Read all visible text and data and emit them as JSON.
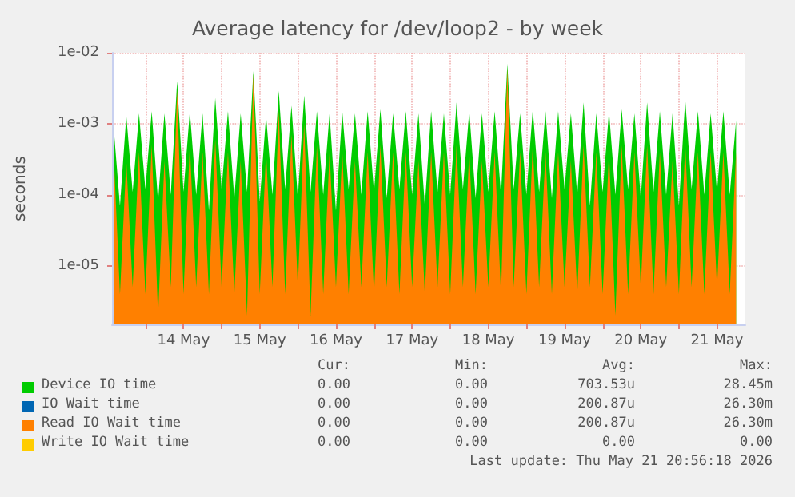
{
  "chart_data": {
    "type": "area",
    "title": "Average latency for /dev/loop2 - by week",
    "ylabel": "seconds",
    "log": "y",
    "grid": true,
    "legend": "bottom",
    "marker": "none",
    "xlim": [
      "2026-05-13T13:30",
      "2026-05-21T20:56"
    ],
    "xticks": [
      {
        "value": "2026-05-14T00:00",
        "label": null
      },
      {
        "value": "2026-05-14T12:00",
        "label": "14 May"
      },
      {
        "value": "2026-05-15T00:00",
        "label": null
      },
      {
        "value": "2026-05-15T12:00",
        "label": "15 May"
      },
      {
        "value": "2026-05-16T00:00",
        "label": null
      },
      {
        "value": "2026-05-16T12:00",
        "label": "16 May"
      },
      {
        "value": "2026-05-17T00:00",
        "label": null
      },
      {
        "value": "2026-05-17T12:00",
        "label": "17 May"
      },
      {
        "value": "2026-05-18T00:00",
        "label": null
      },
      {
        "value": "2026-05-18T12:00",
        "label": "18 May"
      },
      {
        "value": "2026-05-19T00:00",
        "label": null
      },
      {
        "value": "2026-05-19T12:00",
        "label": "19 May"
      },
      {
        "value": "2026-05-20T00:00",
        "label": null
      },
      {
        "value": "2026-05-20T12:00",
        "label": "20 May"
      },
      {
        "value": "2026-05-21T00:00",
        "label": null
      },
      {
        "value": "2026-05-21T12:00",
        "label": "21 May"
      }
    ],
    "ylim": [
      1.5e-06,
      0.01
    ],
    "yticks": [
      {
        "value": 1e-05,
        "label": "1e-05"
      },
      {
        "value": 0.0001,
        "label": "1e-04"
      },
      {
        "value": 0.001,
        "label": "1e-03"
      },
      {
        "value": 0.01,
        "label": "1e-02"
      }
    ],
    "x": [
      "2026-05-13T14:00",
      "2026-05-13T16:00",
      "2026-05-13T18:00",
      "2026-05-13T20:00",
      "2026-05-13T22:00",
      "2026-05-14T00:00",
      "2026-05-14T02:00",
      "2026-05-14T04:00",
      "2026-05-14T06:00",
      "2026-05-14T08:00",
      "2026-05-14T10:00",
      "2026-05-14T12:00",
      "2026-05-14T14:00",
      "2026-05-14T16:00",
      "2026-05-14T18:00",
      "2026-05-14T20:00",
      "2026-05-14T22:00",
      "2026-05-15T00:00",
      "2026-05-15T02:00",
      "2026-05-15T04:00",
      "2026-05-15T06:00",
      "2026-05-15T08:00",
      "2026-05-15T10:00",
      "2026-05-15T12:00",
      "2026-05-15T14:00",
      "2026-05-15T16:00",
      "2026-05-15T18:00",
      "2026-05-15T20:00",
      "2026-05-15T22:00",
      "2026-05-16T00:00",
      "2026-05-16T02:00",
      "2026-05-16T04:00",
      "2026-05-16T06:00",
      "2026-05-16T08:00",
      "2026-05-16T10:00",
      "2026-05-16T12:00",
      "2026-05-16T14:00",
      "2026-05-16T16:00",
      "2026-05-16T18:00",
      "2026-05-16T20:00",
      "2026-05-16T22:00",
      "2026-05-17T00:00",
      "2026-05-17T02:00",
      "2026-05-17T04:00",
      "2026-05-17T06:00",
      "2026-05-17T08:00",
      "2026-05-17T10:00",
      "2026-05-17T12:00",
      "2026-05-17T14:00",
      "2026-05-17T16:00",
      "2026-05-17T18:00",
      "2026-05-17T20:00",
      "2026-05-17T22:00",
      "2026-05-18T00:00",
      "2026-05-18T02:00",
      "2026-05-18T04:00",
      "2026-05-18T06:00",
      "2026-05-18T08:00",
      "2026-05-18T10:00",
      "2026-05-18T12:00",
      "2026-05-18T14:00",
      "2026-05-18T16:00",
      "2026-05-18T18:00",
      "2026-05-18T20:00",
      "2026-05-18T22:00",
      "2026-05-19T00:00",
      "2026-05-19T02:00",
      "2026-05-19T04:00",
      "2026-05-19T06:00",
      "2026-05-19T08:00",
      "2026-05-19T10:00",
      "2026-05-19T12:00",
      "2026-05-19T14:00",
      "2026-05-19T16:00",
      "2026-05-19T18:00",
      "2026-05-19T20:00",
      "2026-05-19T22:00",
      "2026-05-20T00:00",
      "2026-05-20T02:00",
      "2026-05-20T04:00",
      "2026-05-20T06:00",
      "2026-05-20T08:00",
      "2026-05-20T10:00",
      "2026-05-20T12:00",
      "2026-05-20T14:00",
      "2026-05-20T16:00",
      "2026-05-20T18:00",
      "2026-05-20T20:00",
      "2026-05-20T22:00",
      "2026-05-21T00:00",
      "2026-05-21T02:00",
      "2026-05-21T04:00",
      "2026-05-21T06:00",
      "2026-05-21T08:00",
      "2026-05-21T10:00",
      "2026-05-21T12:00",
      "2026-05-21T14:00",
      "2026-05-21T16:00",
      "2026-05-21T18:00"
    ],
    "series": [
      {
        "name": "Device IO time",
        "color": "#00cc00",
        "values": [
          0.0009,
          7e-05,
          0.0013,
          0.00011,
          0.0014,
          0.00012,
          0.0015,
          8e-05,
          0.0014,
          0.0001,
          0.004,
          0.00011,
          0.0015,
          0.0001,
          0.0014,
          6e-05,
          0.0023,
          0.00012,
          0.0015,
          9e-05,
          0.0014,
          0.00011,
          0.0055,
          8e-05,
          0.0013,
          0.0001,
          0.0029,
          0.00012,
          0.0018,
          9e-05,
          0.0025,
          0.00011,
          0.0015,
          0.0001,
          0.0014,
          6e-05,
          0.0015,
          0.00012,
          0.0014,
          0.0001,
          0.0015,
          0.00011,
          0.0016,
          9e-05,
          0.0014,
          0.00012,
          0.0015,
          0.0001,
          0.0014,
          7e-05,
          0.0015,
          0.00011,
          0.0014,
          0.0001,
          0.002,
          0.00012,
          0.0015,
          9e-05,
          0.0014,
          0.00011,
          0.0015,
          0.0001,
          0.007,
          0.00012,
          0.0014,
          0.0001,
          0.0016,
          0.00011,
          0.0015,
          9e-05,
          0.0015,
          0.00012,
          0.0014,
          0.0001,
          0.002,
          7e-05,
          0.0014,
          0.00011,
          0.0015,
          0.0001,
          0.0016,
          0.00012,
          0.0014,
          9e-05,
          0.002,
          0.00011,
          0.0015,
          0.0001,
          0.0014,
          7e-05,
          0.0022,
          0.00012,
          0.0015,
          0.0001,
          0.0014,
          0.00011,
          0.0015,
          0.0001,
          0.0011
        ]
      },
      {
        "name": "IO Wait time",
        "color": "#0066b3",
        "values": [
          null,
          null,
          null,
          null,
          null,
          null,
          null,
          null,
          null,
          null,
          null,
          null,
          null,
          null,
          null,
          null,
          null,
          null,
          null,
          null,
          null,
          null,
          null,
          null,
          null,
          null,
          null,
          null,
          null,
          null,
          null,
          null,
          null,
          null,
          null,
          null,
          null,
          null,
          null,
          null,
          null,
          null,
          null,
          null,
          null,
          null,
          null,
          null,
          null,
          null,
          null,
          null,
          null,
          null,
          null,
          null,
          null,
          null,
          null,
          null,
          null,
          null,
          null,
          null,
          null,
          null,
          null,
          null,
          null,
          null,
          null,
          null,
          null,
          null,
          null,
          null,
          null,
          null,
          null,
          null,
          null,
          null,
          null,
          null,
          null,
          null,
          null,
          null,
          null,
          null,
          null,
          null,
          null,
          null,
          null,
          null,
          null,
          null,
          null
        ]
      },
      {
        "name": "Read IO Wait time",
        "color": "#ff8000",
        "values": [
          0.0004,
          4e-06,
          0.0003,
          5e-06,
          0.0004,
          4e-06,
          0.0005,
          2e-06,
          0.0003,
          5e-06,
          0.003,
          4e-06,
          0.0005,
          5e-06,
          0.0004,
          4e-06,
          0.0006,
          5e-06,
          0.0004,
          4e-06,
          0.0003,
          2e-06,
          0.005,
          4e-06,
          0.0004,
          5e-06,
          0.0015,
          4e-06,
          0.0007,
          5e-06,
          0.001,
          2e-06,
          0.0005,
          4e-06,
          0.0004,
          5e-06,
          0.0004,
          4e-06,
          0.0003,
          5e-06,
          0.0004,
          4e-06,
          0.0005,
          5e-06,
          0.0004,
          4e-06,
          0.0004,
          5e-06,
          0.0003,
          4e-06,
          0.0004,
          5e-06,
          0.0004,
          4e-06,
          0.0005,
          5e-06,
          0.0004,
          4e-06,
          0.0003,
          5e-06,
          0.0004,
          4e-06,
          0.006,
          5e-06,
          0.0004,
          4e-06,
          0.0005,
          5e-06,
          0.0004,
          4e-06,
          0.0004,
          5e-06,
          0.0003,
          4e-06,
          0.0005,
          5e-06,
          0.0004,
          4e-06,
          0.0004,
          2e-06,
          0.0005,
          4e-06,
          0.0004,
          5e-06,
          0.0005,
          4e-06,
          0.0004,
          5e-06,
          0.0003,
          4e-06,
          0.0005,
          5e-06,
          0.0004,
          4e-06,
          0.0004,
          5e-06,
          0.0004,
          4e-06,
          0.0004
        ]
      },
      {
        "name": "Write IO Wait time",
        "color": "#ffcc00",
        "values": [
          null,
          null,
          null,
          null,
          null,
          null,
          null,
          null,
          null,
          null,
          null,
          null,
          null,
          null,
          null,
          null,
          null,
          null,
          null,
          null,
          null,
          null,
          null,
          null,
          null,
          null,
          null,
          null,
          null,
          null,
          null,
          null,
          null,
          null,
          null,
          null,
          null,
          null,
          null,
          null,
          null,
          null,
          null,
          null,
          null,
          null,
          null,
          null,
          null,
          null,
          null,
          null,
          null,
          null,
          null,
          null,
          null,
          null,
          null,
          null,
          null,
          null,
          null,
          null,
          null,
          null,
          null,
          null,
          null,
          null,
          null,
          null,
          null,
          null,
          null,
          null,
          null,
          null,
          null,
          null,
          null,
          null,
          null,
          null,
          null,
          null,
          null,
          null,
          null,
          null,
          null,
          null,
          null,
          null,
          null,
          null,
          null,
          null,
          null
        ]
      }
    ],
    "annotations": [
      "Cur:",
      "Min:",
      "Avg:",
      "Max:",
      "0.00",
      "0.00",
      "703.53u",
      "28.45m",
      "0.00",
      "0.00",
      "200.87u",
      "26.30m",
      "0.00",
      "0.00",
      "200.87u",
      "26.30m",
      "0.00",
      "0.00",
      "0.00",
      "0.00",
      "Last update: Thu May 21 20:56:18 2026"
    ]
  }
}
